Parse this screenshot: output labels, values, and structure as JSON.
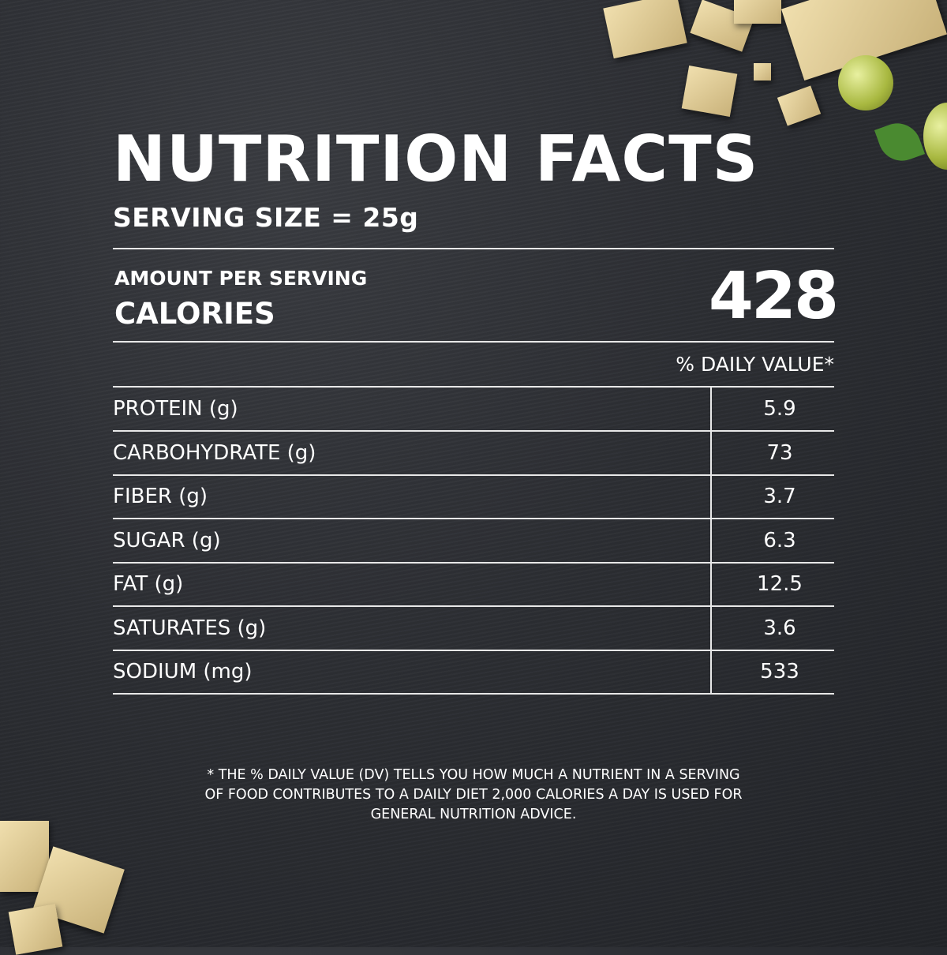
{
  "title": "NUTRITION FACTS",
  "serving_size": "SERVING SIZE = 25g",
  "amount_per_serving": "AMOUNT PER SERVING",
  "calories_label": "CALORIES",
  "calories_value": "428",
  "daily_value_header": "% DAILY VALUE*",
  "rows": [
    {
      "name": "PROTEIN (g)",
      "value": "5.9"
    },
    {
      "name": "CARBOHYDRATE (g)",
      "value": "73"
    },
    {
      "name": "FIBER (g)",
      "value": "3.7"
    },
    {
      "name": "SUGAR (g)",
      "value": "6.3"
    },
    {
      "name": "FAT (g)",
      "value": "12.5"
    },
    {
      "name": "SATURATES (g)",
      "value": "3.6"
    },
    {
      "name": "SODIUM (mg)",
      "value": "533"
    }
  ],
  "footnote": "* THE % DAILY VALUE (DV) TELLS YOU HOW MUCH A NUTRIENT IN A SERVING OF FOOD CONTRIBUTES TO A DAILY DIET 2,000 CALORIES A DAY IS USED FOR GENERAL NUTRITION ADVICE."
}
